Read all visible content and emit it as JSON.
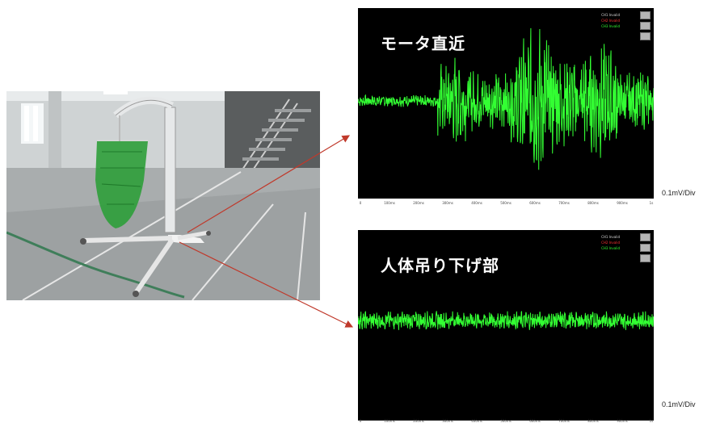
{
  "scopes": [
    {
      "title": "モータ直近",
      "legend": [
        "CH1 Invalid",
        "CH2 Invalid",
        "CH3 Invalid"
      ],
      "scale_label": "0.1mV/Div",
      "tick_labels": [
        "0",
        "100ms",
        "200ms",
        "300ms",
        "400ms",
        "500ms",
        "600ms",
        "700ms",
        "800ms",
        "900ms",
        "1s"
      ],
      "signal": {
        "baseline_amplitude": 0.05,
        "burst_start_fraction": 0.27,
        "burst_amplitude": 0.7
      }
    },
    {
      "title": "人体吊り下げ部",
      "legend": [
        "CH1 Invalid",
        "CH2 Invalid",
        "CH3 Invalid"
      ],
      "scale_label": "0.1mV/Div",
      "tick_labels": [
        "0",
        "100ms",
        "200ms",
        "300ms",
        "400ms",
        "500ms",
        "600ms",
        "700ms",
        "800ms",
        "900ms",
        "1s"
      ],
      "signal": {
        "baseline_amplitude": 0.08,
        "burst_start_fraction": 1.0,
        "burst_amplitude": 0.08
      }
    }
  ],
  "colors": {
    "waveform": "#33ff33",
    "scope_background": "#000000",
    "arrow": "#c0392b",
    "sling": "#2e9e3a"
  },
  "photo": {
    "subject": "patient-lift-with-green-sling"
  }
}
